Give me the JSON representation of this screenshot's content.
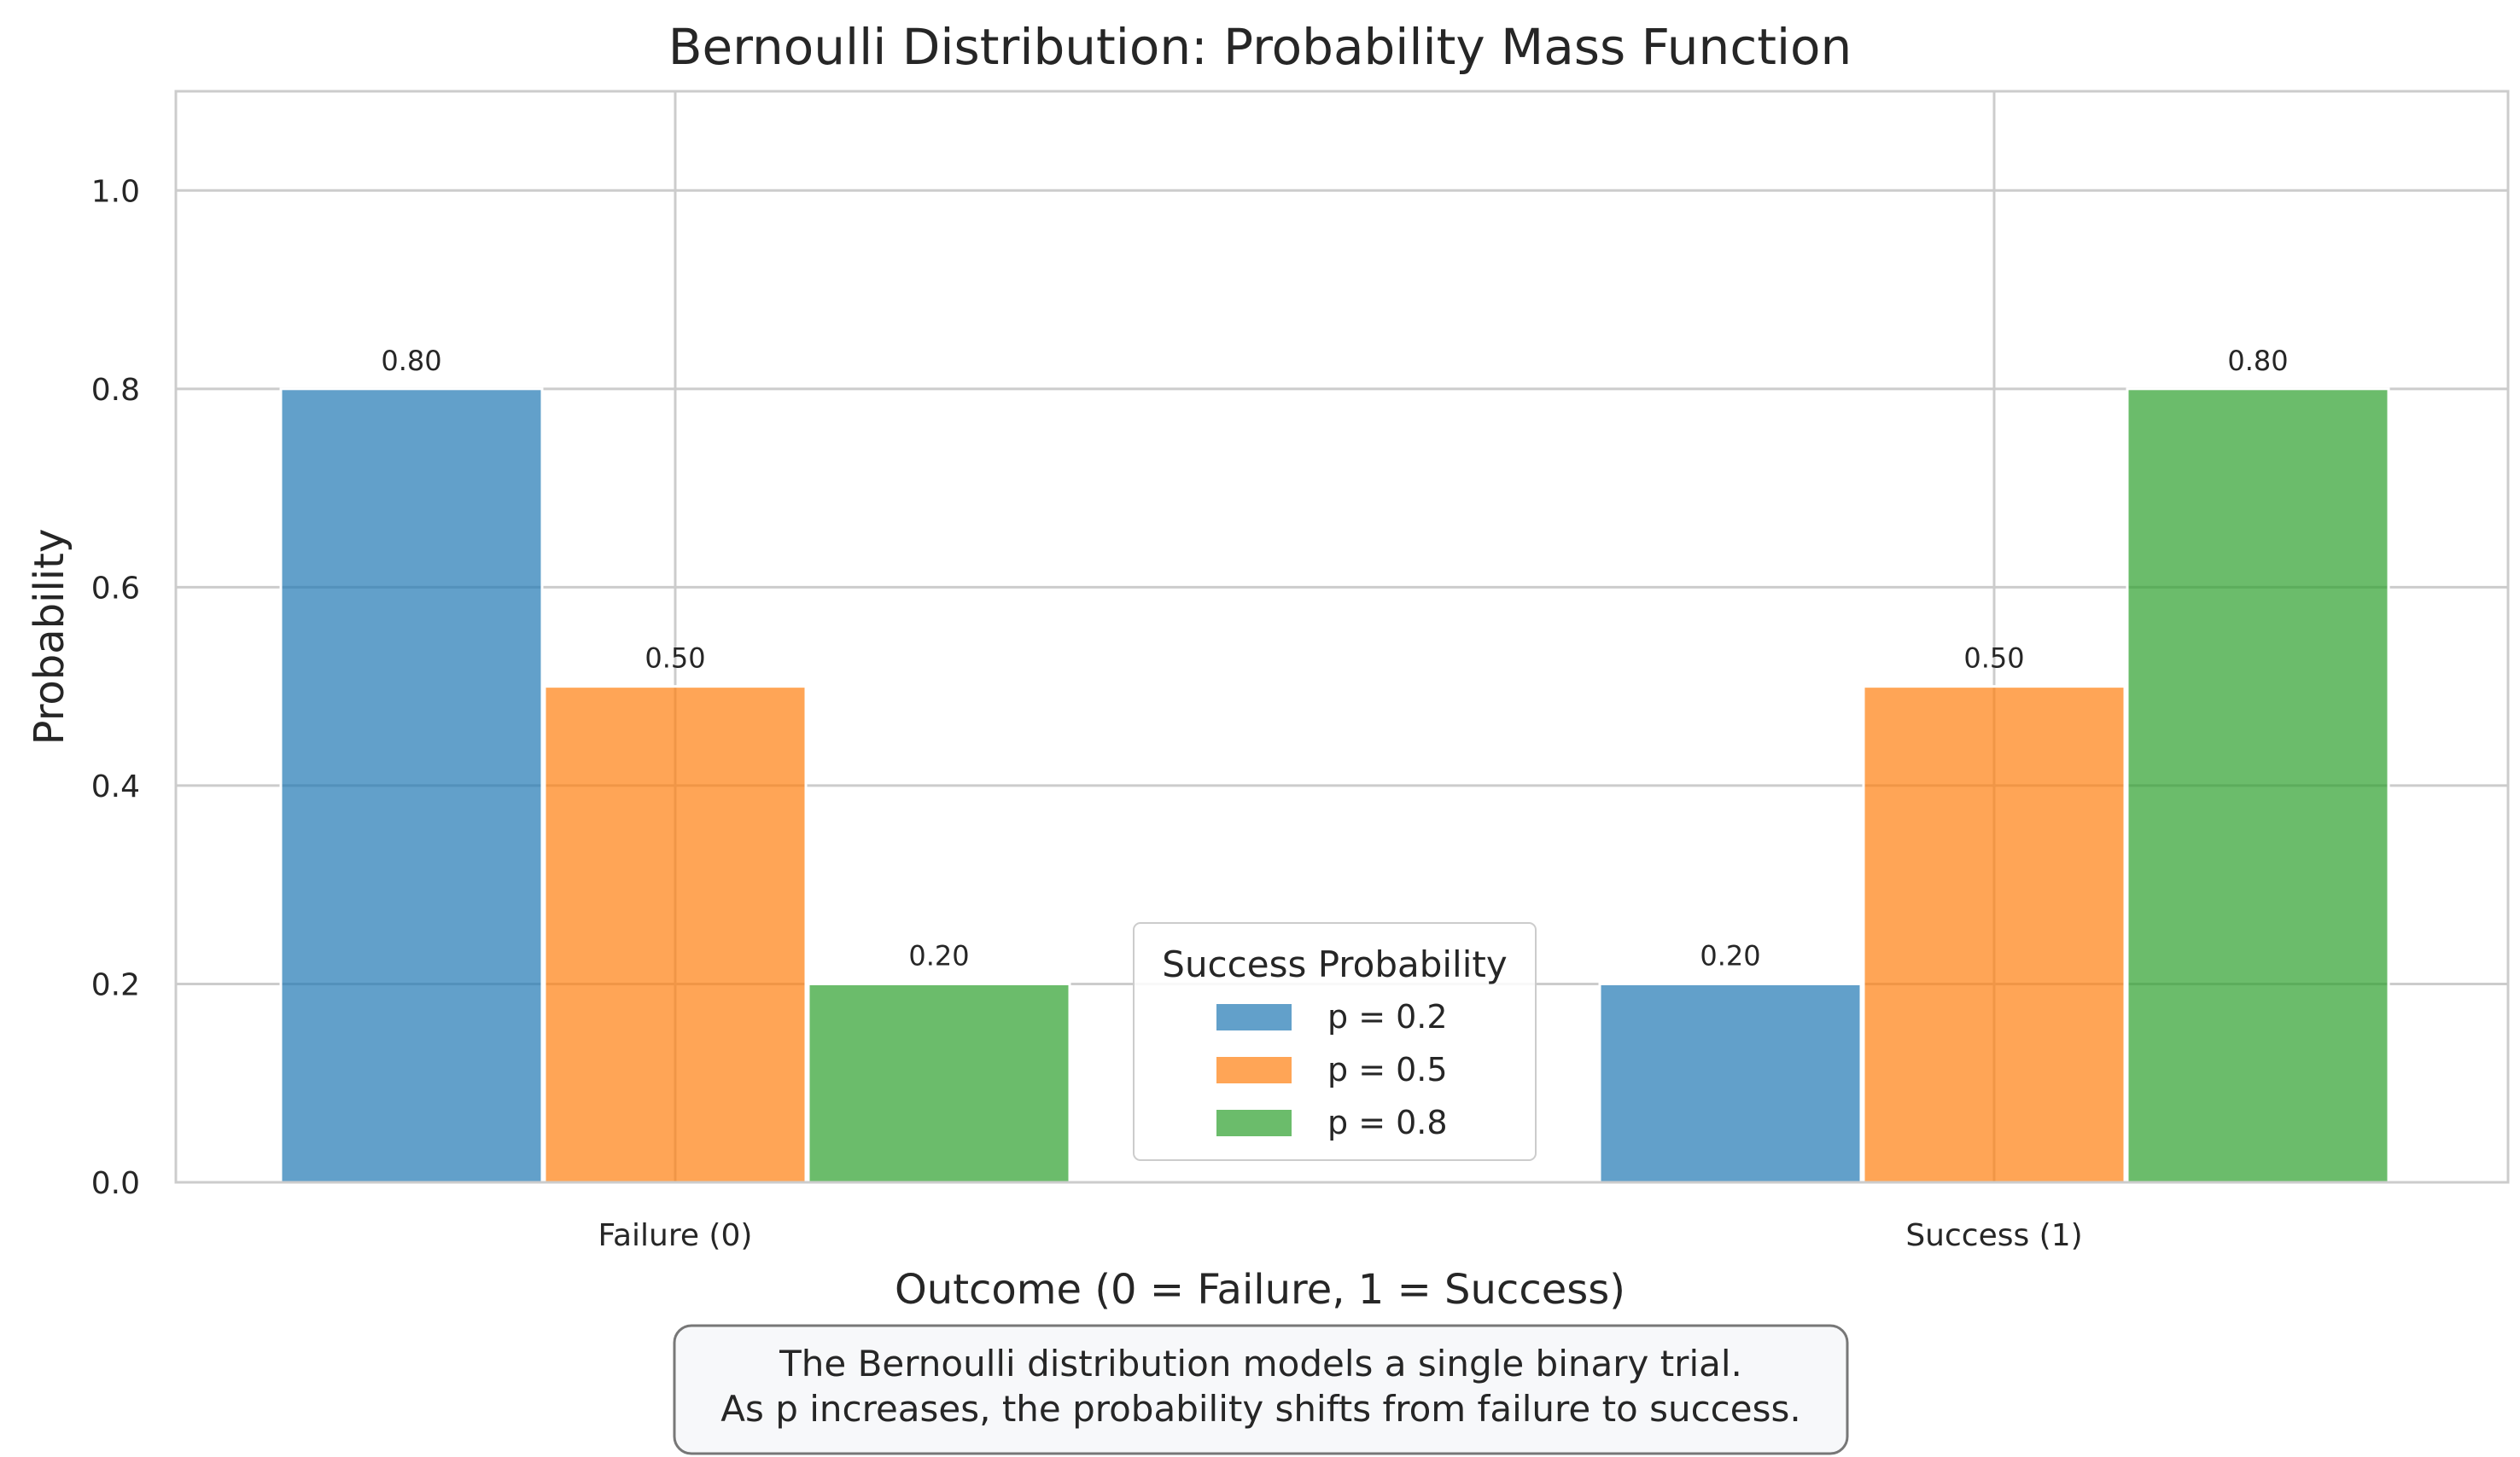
{
  "chart_data": {
    "type": "bar",
    "title": "Bernoulli Distribution: Probability Mass Function",
    "xlabel": "Outcome (0 = Failure, 1 = Success)",
    "ylabel": "Probability",
    "categories": [
      "Failure (0)",
      "Success (1)"
    ],
    "series": [
      {
        "name": "p = 0.2",
        "values": [
          0.8,
          0.2
        ],
        "color": "#1f77b4"
      },
      {
        "name": "p = 0.5",
        "values": [
          0.5,
          0.5
        ],
        "color": "#ff7f0e"
      },
      {
        "name": "p = 0.8",
        "values": [
          0.2,
          0.8
        ],
        "color": "#2ca02c"
      }
    ],
    "value_labels": [
      [
        "0.80",
        "0.20"
      ],
      [
        "0.50",
        "0.50"
      ],
      [
        "0.20",
        "0.80"
      ]
    ],
    "ylim": [
      0,
      1.1
    ],
    "yticks": [
      "0.0",
      "0.2",
      "0.4",
      "0.6",
      "0.8",
      "1.0"
    ],
    "grid": true,
    "legend": {
      "title": "Success Probability",
      "placement": "lower-center"
    },
    "annotation": [
      "The Bernoulli distribution models a single binary trial.",
      "As p increases, the probability shifts from failure to success."
    ]
  }
}
